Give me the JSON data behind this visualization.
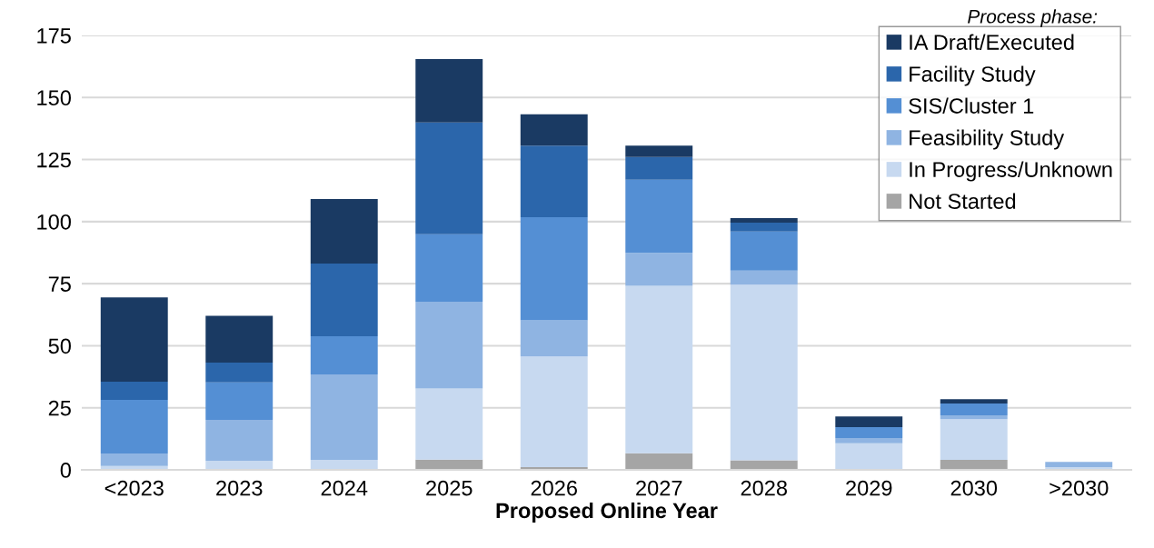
{
  "chart_data": {
    "type": "bar",
    "stacked": true,
    "xlabel": "Proposed Online Year",
    "legend_title": "Process phase:",
    "legend": "top right",
    "grid": "y",
    "categories": [
      "<2023",
      "2023",
      "2024",
      "2025",
      "2026",
      "2027",
      "2028",
      "2029",
      "2030",
      ">2030"
    ],
    "ylim": [
      0,
      175
    ],
    "yticks": [
      0,
      25,
      50,
      75,
      100,
      125,
      150,
      175
    ],
    "series": [
      {
        "name": "Not Started",
        "color": "#a5a5a5",
        "values": [
          0,
          0,
          0,
          4.1,
          1.1,
          6.7,
          3.8,
          0,
          4.0,
          0
        ]
      },
      {
        "name": "In Progress/Unknown",
        "color": "#c7d9f0",
        "values": [
          1.6,
          3.7,
          4.0,
          28.7,
          44.6,
          67.4,
          70.8,
          10.7,
          16.4,
          1.1
        ]
      },
      {
        "name": "Feasibility Study",
        "color": "#8fb4e2",
        "values": [
          5.0,
          16.4,
          34.4,
          34.9,
          14.5,
          13.3,
          5.7,
          2.1,
          1.6,
          2.1
        ]
      },
      {
        "name": "SIS/Cluster 1",
        "color": "#548fd4",
        "values": [
          21.6,
          15.1,
          15.4,
          27.2,
          41.6,
          29.5,
          15.7,
          4.4,
          4.7,
          0
        ]
      },
      {
        "name": "Facility Study",
        "color": "#2b66ab",
        "values": [
          7.3,
          8.0,
          29.3,
          45.0,
          28.8,
          9.1,
          3.6,
          0,
          0,
          0
        ]
      },
      {
        "name": "IA Draft/Executed",
        "color": "#1a3a63",
        "values": [
          34.0,
          18.9,
          26.0,
          25.6,
          12.6,
          4.6,
          1.8,
          4.3,
          1.8,
          0
        ]
      }
    ]
  }
}
